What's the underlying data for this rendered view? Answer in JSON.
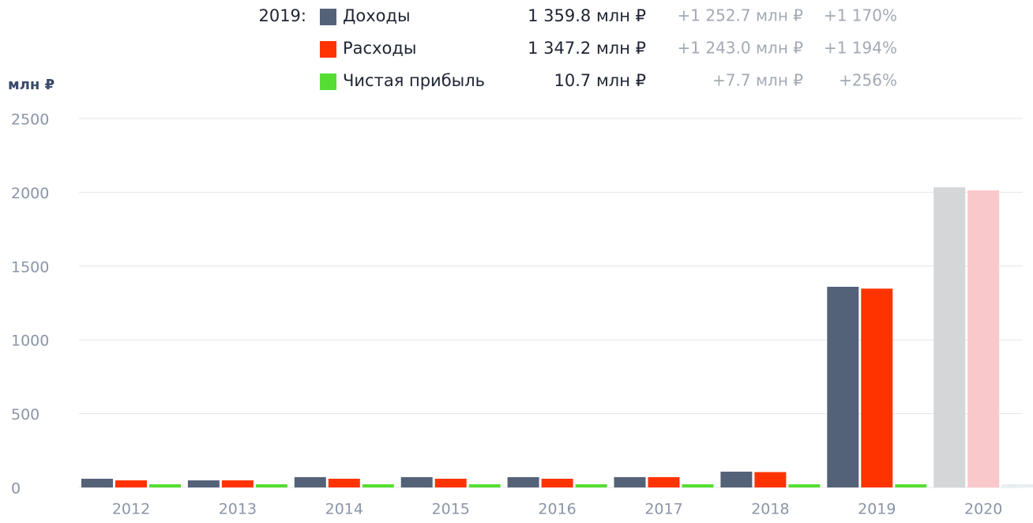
{
  "chart_data": {
    "type": "bar",
    "y_label": "млн ₽",
    "categories": [
      "2012",
      "2013",
      "2014",
      "2015",
      "2016",
      "2017",
      "2018",
      "2019",
      "2020"
    ],
    "series": [
      {
        "name": "Доходы",
        "color": "#546278",
        "colors": [
          "#546278",
          "#546278",
          "#546278",
          "#546278",
          "#546278",
          "#546278",
          "#546278",
          "#546278",
          "#d5d6d8"
        ],
        "values": [
          59,
          48,
          70,
          70,
          70,
          70,
          107.1,
          1359.8,
          2034
        ]
      },
      {
        "name": "Расходы",
        "color": "#ff3300",
        "colors": [
          "#ff3300",
          "#ff3300",
          "#ff3300",
          "#ff3300",
          "#ff3300",
          "#ff3300",
          "#ff3300",
          "#ff3300",
          "#f9c8cb"
        ],
        "values": [
          48,
          48,
          59,
          59,
          59,
          70,
          104.2,
          1347.2,
          2013
        ]
      },
      {
        "name": "Чистая прибыль",
        "color": "#55dd33",
        "colors": [
          "#55dd33",
          "#55dd33",
          "#55dd33",
          "#55dd33",
          "#55dd33",
          "#55dd33",
          "#55dd33",
          "#55dd33",
          "#e6eef0"
        ],
        "values": [
          3,
          3,
          3,
          3,
          3,
          3,
          3.0,
          10.7,
          3
        ]
      }
    ],
    "ylim": [
      0,
      2500
    ],
    "yticks": [
      0,
      500,
      1000,
      1500,
      2000,
      2500
    ],
    "grid": true,
    "summary": {
      "label": "2019:",
      "rows": [
        {
          "value": "1 359.8 млн ₽",
          "change": "+1 252.7 млн ₽",
          "percent": "+1 170%"
        },
        {
          "value": "1 347.2 млн ₽",
          "change": "+1 243.0 млн ₽",
          "percent": "+1 194%"
        },
        {
          "value": "10.7 млн ₽",
          "change": "+7.7 млн ₽",
          "percent": "+256%"
        }
      ]
    }
  }
}
